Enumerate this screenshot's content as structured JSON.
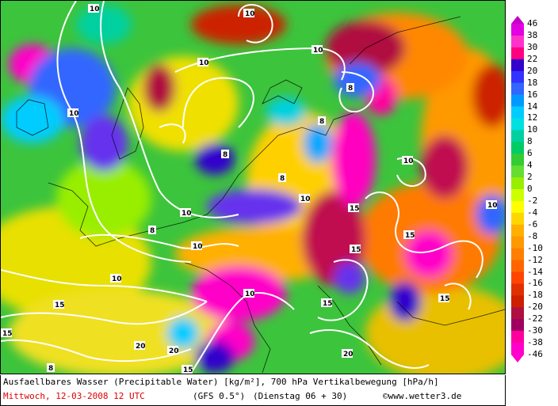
{
  "caption": {
    "title": "Ausfaellbares Wasser (Precipitable Water) [kg/m²], 700 hPa Vertikalbewegung [hPa/h]",
    "date": "Mittwoch, 12-03-2008  12 UTC",
    "model": "(GFS 0.5°)",
    "run": "(Dienstag 06 + 30)",
    "credit": "©www.wetter3.de"
  },
  "legend": {
    "values": [
      "46",
      "38",
      "30",
      "22",
      "20",
      "18",
      "16",
      "14",
      "12",
      "10",
      "8",
      "6",
      "4",
      "2",
      "0",
      "-2",
      "-4",
      "-6",
      "-8",
      "-10",
      "-12",
      "-14",
      "-16",
      "-18",
      "-20",
      "-22",
      "-30",
      "-38",
      "-46"
    ],
    "colors": [
      "#c400c4",
      "#e000e0",
      "#ff33cc",
      "#ff0080",
      "#3300cc",
      "#3333ff",
      "#3366ff",
      "#0099ff",
      "#00ccff",
      "#00e0e0",
      "#00d0a0",
      "#00cc66",
      "#33cc33",
      "#66dd33",
      "#99ee00",
      "#ccff00",
      "#ffff00",
      "#ffd700",
      "#ffb000",
      "#ff9900",
      "#ff7f00",
      "#ff6600",
      "#ff4500",
      "#e03000",
      "#cc2000",
      "#b01040",
      "#a00060",
      "#ff00a0",
      "#ff00cc"
    ]
  },
  "map": {
    "contour_labels": [
      "10",
      "10",
      "10",
      "10",
      "10",
      "10",
      "10",
      "10",
      "10",
      "10",
      "10",
      "10",
      "8",
      "8",
      "8",
      "8",
      "8",
      "8",
      "15",
      "15",
      "15",
      "15",
      "15",
      "15",
      "15",
      "15",
      "20",
      "20",
      "20"
    ],
    "background_color": "#3cc43c",
    "contour_color": "#ffffff"
  }
}
